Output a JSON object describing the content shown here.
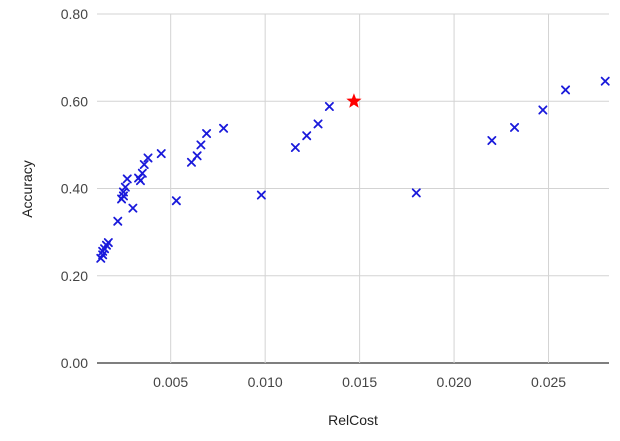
{
  "chart_data": {
    "type": "scatter",
    "title": "",
    "xlabel": "RelCost",
    "ylabel": "Accuracy",
    "xlim": [
      0.0011,
      0.0282
    ],
    "ylim": [
      0.0,
      0.8
    ],
    "grid": true,
    "x_ticks": [
      {
        "value": 0.005,
        "label": "0.005"
      },
      {
        "value": 0.01,
        "label": "0.010"
      },
      {
        "value": 0.015,
        "label": "0.015"
      },
      {
        "value": 0.02,
        "label": "0.020"
      },
      {
        "value": 0.025,
        "label": "0.025"
      }
    ],
    "y_ticks": [
      {
        "value": 0.0,
        "label": "0.00"
      },
      {
        "value": 0.2,
        "label": "0.20"
      },
      {
        "value": 0.4,
        "label": "0.40"
      },
      {
        "value": 0.6,
        "label": "0.60"
      },
      {
        "value": 0.8,
        "label": "0.80"
      }
    ],
    "series": [
      {
        "marker": "x",
        "color": "#1a1adb",
        "points": [
          {
            "x": 0.0013,
            "y": 0.24
          },
          {
            "x": 0.0014,
            "y": 0.248
          },
          {
            "x": 0.0014,
            "y": 0.256
          },
          {
            "x": 0.0015,
            "y": 0.262
          },
          {
            "x": 0.0016,
            "y": 0.27
          },
          {
            "x": 0.0017,
            "y": 0.276
          },
          {
            "x": 0.0022,
            "y": 0.325
          },
          {
            "x": 0.0024,
            "y": 0.376
          },
          {
            "x": 0.0025,
            "y": 0.383
          },
          {
            "x": 0.0025,
            "y": 0.392
          },
          {
            "x": 0.0026,
            "y": 0.403
          },
          {
            "x": 0.0027,
            "y": 0.422
          },
          {
            "x": 0.003,
            "y": 0.355
          },
          {
            "x": 0.0033,
            "y": 0.424
          },
          {
            "x": 0.0034,
            "y": 0.418
          },
          {
            "x": 0.0035,
            "y": 0.435
          },
          {
            "x": 0.0036,
            "y": 0.455
          },
          {
            "x": 0.0038,
            "y": 0.47
          },
          {
            "x": 0.0045,
            "y": 0.48
          },
          {
            "x": 0.0053,
            "y": 0.372
          },
          {
            "x": 0.0061,
            "y": 0.46
          },
          {
            "x": 0.0064,
            "y": 0.475
          },
          {
            "x": 0.0066,
            "y": 0.5
          },
          {
            "x": 0.0069,
            "y": 0.526
          },
          {
            "x": 0.0078,
            "y": 0.538
          },
          {
            "x": 0.0098,
            "y": 0.385
          },
          {
            "x": 0.0116,
            "y": 0.494
          },
          {
            "x": 0.0122,
            "y": 0.521
          },
          {
            "x": 0.0128,
            "y": 0.548
          },
          {
            "x": 0.0134,
            "y": 0.588
          },
          {
            "x": 0.018,
            "y": 0.39
          },
          {
            "x": 0.022,
            "y": 0.51
          },
          {
            "x": 0.0232,
            "y": 0.54
          },
          {
            "x": 0.0247,
            "y": 0.58
          },
          {
            "x": 0.0259,
            "y": 0.626
          },
          {
            "x": 0.028,
            "y": 0.646
          }
        ]
      },
      {
        "marker": "star",
        "color": "#ff0000",
        "points": [
          {
            "x": 0.0147,
            "y": 0.6
          }
        ]
      }
    ],
    "colors": {
      "grid": "#d3d3d3",
      "baseline": "#333333",
      "tick_text": "#444444",
      "axis_title": "#222222"
    }
  }
}
